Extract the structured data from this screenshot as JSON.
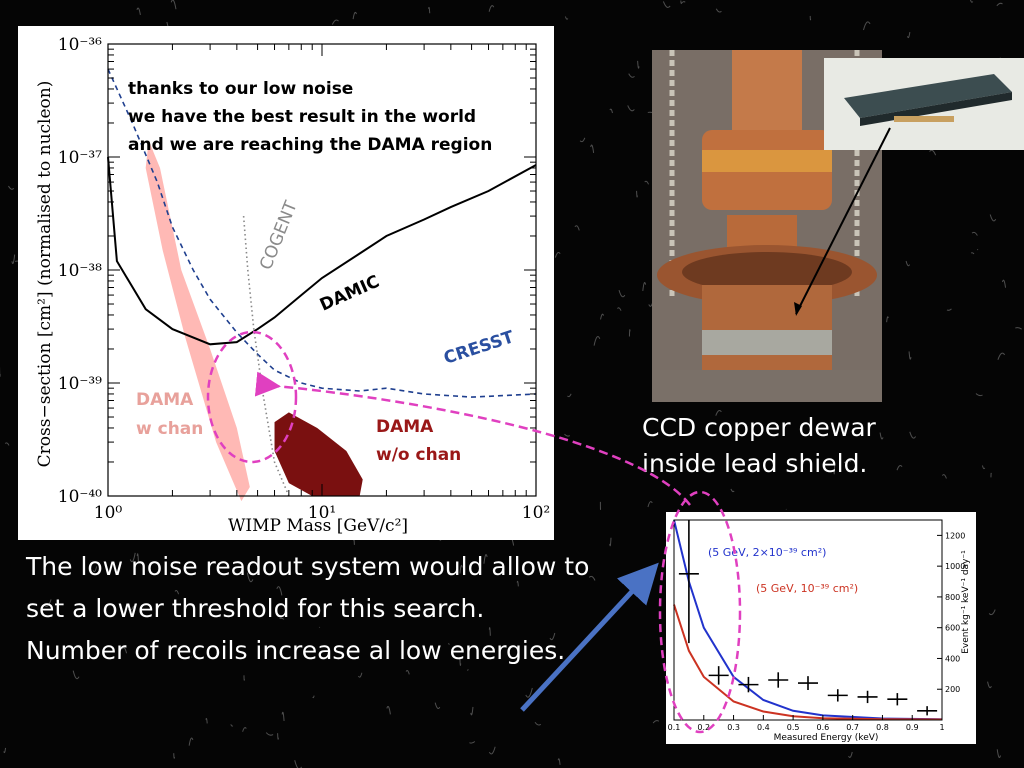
{
  "chart_data": [
    {
      "type": "line",
      "xlabel": "WIMP Mass [GeV/c²]",
      "ylabel": "Cross−section [cm²] (normalised to nucleon)",
      "xscale": "log",
      "yscale": "log",
      "xlim": [
        1,
        100
      ],
      "ylim": [
        1e-40,
        1e-36
      ],
      "x_tick_labels": [
        "10⁰",
        "10¹",
        "10²"
      ],
      "y_tick_labels": [
        "10⁻⁴⁰",
        "10⁻³⁹",
        "10⁻³⁸",
        "10⁻³⁷",
        "10⁻³⁶"
      ],
      "annotation": {
        "lines": [
          "thanks to our low noise",
          "we have the best result in the world",
          "and we are reaching the DAMA region"
        ]
      },
      "series": [
        {
          "name": "DAMIC",
          "style": "solid",
          "color": "#000000",
          "x": [
            1.0,
            1.1,
            1.5,
            2.0,
            3.0,
            4.0,
            5.0,
            6.0,
            8.0,
            10,
            15,
            20,
            30,
            40,
            60,
            100
          ],
          "y": [
            1e-37,
            1.2e-38,
            4.5e-39,
            3e-39,
            2.2e-39,
            2.3e-39,
            3e-39,
            3.8e-39,
            6e-39,
            8.5e-39,
            1.4e-38,
            2e-38,
            2.8e-38,
            3.6e-38,
            5e-38,
            8.5e-38
          ]
        },
        {
          "name": "CRESST",
          "style": "dashed",
          "color": "#1f3f8f",
          "x": [
            1.0,
            1.3,
            1.7,
            2.0,
            2.5,
            3.0,
            4.0,
            5.0,
            6.0,
            8.0,
            10,
            15,
            20,
            30,
            50,
            100
          ],
          "y": [
            6e-37,
            2e-37,
            6e-38,
            2.4e-38,
            1e-38,
            5.5e-39,
            2.8e-39,
            1.8e-39,
            1.3e-39,
            1e-39,
            9e-40,
            8.5e-40,
            9e-40,
            8e-40,
            7.5e-40,
            8e-40
          ]
        },
        {
          "name": "COGENT",
          "style": "dotted",
          "color": "#888888",
          "x": [
            4.3,
            4.5,
            4.8,
            5.3,
            6.0,
            7.0
          ],
          "y": [
            3e-38,
            1e-38,
            3e-39,
            8e-40,
            2e-40,
            6e-41
          ]
        }
      ],
      "regions": [
        {
          "name": "DAMA",
          "label": "DAMA\nw chan",
          "label_lines": [
            "DAMA",
            "w chan"
          ],
          "color": "#ffb9b5"
        },
        {
          "name": "DAMA",
          "label": "DAMA\nw/o chan",
          "label_lines": [
            "DAMA",
            "w/o chan"
          ],
          "color": "#7a1010"
        }
      ]
    },
    {
      "type": "line",
      "xlabel": "Measured Energy (keV)",
      "ylabel": "Event kg⁻¹ keV⁻¹ day⁻¹",
      "xlim": [
        0.1,
        1.0
      ],
      "ylim": [
        0,
        1300
      ],
      "x_tick_labels": [
        "0.1",
        "0.2",
        "0.3",
        "0.4",
        "0.5",
        "0.6",
        "0.7",
        "0.8",
        "0.9",
        "1"
      ],
      "y_tick_labels": [
        "200",
        "400",
        "600",
        "800",
        "1000",
        "1200"
      ],
      "series": [
        {
          "name": "(5 GeV, 2×10⁻³⁹ cm²)",
          "color": "#2233cc",
          "x": [
            0.1,
            0.15,
            0.2,
            0.3,
            0.4,
            0.5,
            0.6,
            0.8,
            1.0
          ],
          "y": [
            1300,
            900,
            600,
            280,
            130,
            60,
            30,
            10,
            5
          ]
        },
        {
          "name": "(5 GeV, 10⁻³⁹ cm²)",
          "color": "#cc3322",
          "x": [
            0.1,
            0.15,
            0.2,
            0.3,
            0.4,
            0.5,
            0.6,
            0.8,
            1.0
          ],
          "y": [
            750,
            450,
            280,
            120,
            55,
            25,
            12,
            5,
            3
          ]
        },
        {
          "name": "data",
          "color": "#000000",
          "style": "points",
          "x": [
            0.15,
            0.25,
            0.35,
            0.45,
            0.55,
            0.65,
            0.75,
            0.85,
            0.95
          ],
          "y": [
            950,
            290,
            230,
            260,
            240,
            160,
            150,
            135,
            60
          ],
          "yerr": [
            450,
            60,
            50,
            50,
            45,
            40,
            40,
            40,
            30
          ]
        }
      ]
    }
  ],
  "labels": {
    "cogent": "COGENT",
    "damic": "DAMIC",
    "cresst": "CRESST"
  },
  "dewar_caption": [
    "CCD copper dewar",
    "inside lead shield."
  ],
  "body_text": [
    "The low noise readout system would allow to set a lower threshold for this search.",
    "Number of recoils increase al low energies."
  ],
  "colors": {
    "background": "#050505",
    "highlight_dashed": "#e040c0",
    "arrow_blue": "#4a72c4"
  }
}
